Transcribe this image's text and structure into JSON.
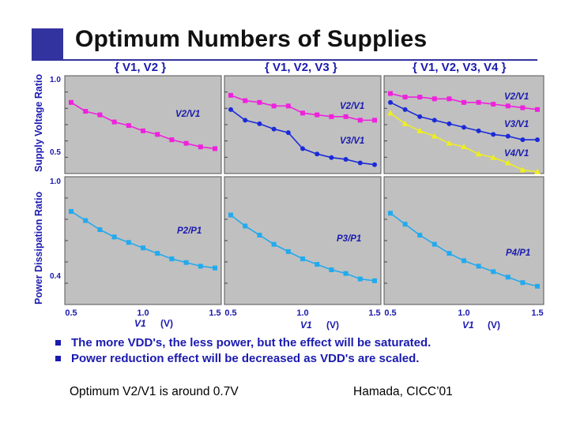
{
  "title": "Optimum Numbers of Supplies",
  "column_headers": [
    "{ V1, V2 }",
    "{ V1, V2, V3 }",
    "{ V1, V2, V3, V4 }"
  ],
  "ylabel_top": "Supply Voltage Ratio",
  "ylabel_bottom": "Power Dissipation Ratio",
  "ytick_labels": {
    "top": [
      "1.0",
      "0.5"
    ],
    "bottom": [
      "1.0",
      "0.4"
    ]
  },
  "xtick_labels": [
    "0.5",
    "1.0",
    "1.5"
  ],
  "xlabel": "V1",
  "xunit": "(V)",
  "bullets": [
    "The more VDD's, the less power, but the effect will be saturated.",
    "Power reduction effect will be decreased as VDD's are scaled."
  ],
  "footer_left": "Optimum V2/V1 is around 0.7V",
  "footer_right": "Hamada, CICC’01",
  "colors": {
    "magenta": "#ee22dd",
    "blue": "#1a2ad8",
    "yellow": "#eeee22",
    "cyan": "#22aaee",
    "panel": "#c0c0c0",
    "text_blue": "#1a1ab0"
  },
  "chart_data": [
    {
      "type": "line",
      "panel": "top-left",
      "ylim": [
        0.45,
        1.0
      ],
      "xlim": [
        0.5,
        1.5
      ],
      "series": [
        {
          "name": "V2/V1",
          "color": "#ee22dd",
          "marker": "square",
          "x": [
            0.5,
            0.6,
            0.7,
            0.8,
            0.9,
            1.0,
            1.1,
            1.2,
            1.3,
            1.4,
            1.5
          ],
          "y": [
            0.85,
            0.8,
            0.78,
            0.74,
            0.72,
            0.69,
            0.67,
            0.64,
            0.62,
            0.6,
            0.59
          ]
        }
      ]
    },
    {
      "type": "line",
      "panel": "top-middle",
      "ylim": [
        0.45,
        1.0
      ],
      "xlim": [
        0.5,
        1.5
      ],
      "series": [
        {
          "name": "V2/V1",
          "color": "#ee22dd",
          "marker": "square",
          "x": [
            0.5,
            0.6,
            0.7,
            0.8,
            0.9,
            1.0,
            1.1,
            1.2,
            1.3,
            1.4,
            1.5
          ],
          "y": [
            0.89,
            0.86,
            0.85,
            0.83,
            0.83,
            0.79,
            0.78,
            0.77,
            0.77,
            0.75,
            0.75
          ]
        },
        {
          "name": "V3/V1",
          "color": "#1a2ad8",
          "marker": "circle",
          "x": [
            0.5,
            0.6,
            0.7,
            0.8,
            0.9,
            1.0,
            1.1,
            1.2,
            1.3,
            1.4,
            1.5
          ],
          "y": [
            0.81,
            0.75,
            0.73,
            0.7,
            0.68,
            0.59,
            0.56,
            0.54,
            0.53,
            0.51,
            0.5
          ]
        }
      ]
    },
    {
      "type": "line",
      "panel": "top-right",
      "ylim": [
        0.45,
        1.0
      ],
      "xlim": [
        0.5,
        1.5
      ],
      "series": [
        {
          "name": "V2/V1",
          "color": "#ee22dd",
          "marker": "square",
          "x": [
            0.5,
            0.6,
            0.7,
            0.8,
            0.9,
            1.0,
            1.1,
            1.2,
            1.3,
            1.4,
            1.5
          ],
          "y": [
            0.9,
            0.88,
            0.88,
            0.87,
            0.87,
            0.85,
            0.85,
            0.84,
            0.83,
            0.82,
            0.81
          ]
        },
        {
          "name": "V3/V1",
          "color": "#1a2ad8",
          "marker": "circle",
          "x": [
            0.5,
            0.6,
            0.7,
            0.8,
            0.9,
            1.0,
            1.1,
            1.2,
            1.3,
            1.4,
            1.5
          ],
          "y": [
            0.85,
            0.81,
            0.77,
            0.75,
            0.73,
            0.71,
            0.69,
            0.67,
            0.66,
            0.64,
            0.64
          ]
        },
        {
          "name": "V4/V1",
          "color": "#eeee22",
          "marker": "triangle",
          "x": [
            0.5,
            0.6,
            0.7,
            0.8,
            0.9,
            1.0,
            1.1,
            1.2,
            1.3,
            1.4,
            1.5
          ],
          "y": [
            0.79,
            0.73,
            0.69,
            0.66,
            0.62,
            0.6,
            0.56,
            0.54,
            0.51,
            0.47,
            0.46
          ]
        }
      ]
    },
    {
      "type": "line",
      "panel": "bottom-left",
      "ylim": [
        0.3,
        1.0
      ],
      "xlim": [
        0.5,
        1.5
      ],
      "series": [
        {
          "name": "P2/P1",
          "color": "#22aaee",
          "marker": "square",
          "x": [
            0.5,
            0.6,
            0.7,
            0.8,
            0.9,
            1.0,
            1.1,
            1.2,
            1.3,
            1.4,
            1.5
          ],
          "y": [
            0.81,
            0.76,
            0.71,
            0.67,
            0.64,
            0.61,
            0.58,
            0.55,
            0.53,
            0.51,
            0.5
          ]
        }
      ]
    },
    {
      "type": "line",
      "panel": "bottom-middle",
      "ylim": [
        0.3,
        1.0
      ],
      "xlim": [
        0.5,
        1.5
      ],
      "series": [
        {
          "name": "P3/P1",
          "color": "#22aaee",
          "marker": "square",
          "x": [
            0.5,
            0.6,
            0.7,
            0.8,
            0.9,
            1.0,
            1.1,
            1.2,
            1.3,
            1.4,
            1.5
          ],
          "y": [
            0.79,
            0.73,
            0.68,
            0.63,
            0.59,
            0.55,
            0.52,
            0.49,
            0.47,
            0.44,
            0.43
          ]
        }
      ]
    },
    {
      "type": "line",
      "panel": "bottom-right",
      "ylim": [
        0.3,
        1.0
      ],
      "xlim": [
        0.5,
        1.5
      ],
      "series": [
        {
          "name": "P4/P1",
          "color": "#22aaee",
          "marker": "square",
          "x": [
            0.5,
            0.6,
            0.7,
            0.8,
            0.9,
            1.0,
            1.1,
            1.2,
            1.3,
            1.4,
            1.5
          ],
          "y": [
            0.8,
            0.74,
            0.68,
            0.63,
            0.58,
            0.54,
            0.51,
            0.48,
            0.45,
            0.42,
            0.4
          ]
        }
      ]
    }
  ]
}
